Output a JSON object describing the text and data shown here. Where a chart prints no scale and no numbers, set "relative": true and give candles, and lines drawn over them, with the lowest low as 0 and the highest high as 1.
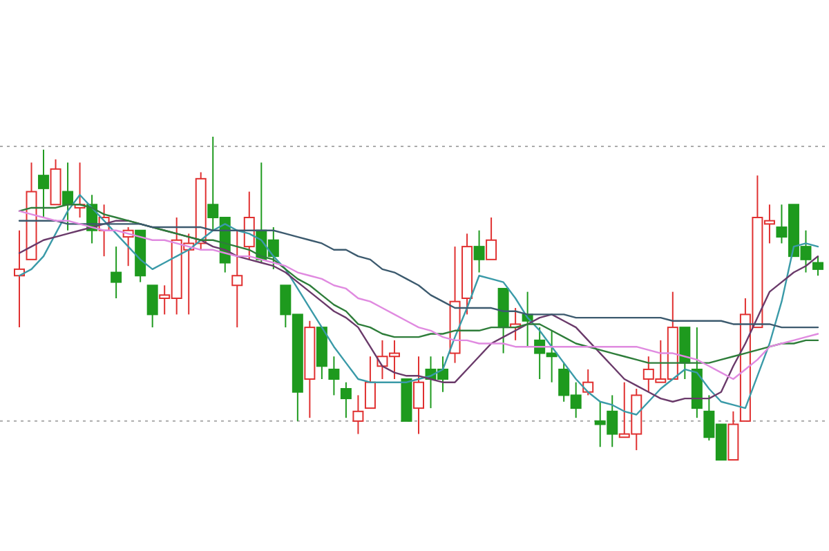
{
  "chart_data": {
    "type": "candlestick",
    "relative": true,
    "categories": [
      null,
      null,
      null,
      null,
      null,
      null,
      null,
      null,
      null,
      null,
      null,
      null,
      null,
      null,
      null,
      null,
      null,
      null,
      null,
      null,
      null,
      null,
      null,
      null,
      null,
      null,
      null,
      null,
      null,
      null,
      null,
      null,
      null,
      null,
      null,
      null,
      null,
      null,
      null,
      null,
      null,
      null,
      null,
      null,
      null,
      null,
      null,
      null,
      null,
      null,
      null,
      null,
      null,
      null,
      null,
      null,
      null,
      null,
      null,
      null,
      null,
      null,
      null,
      null,
      null,
      null,
      null
    ],
    "ohlc": [
      [
        0.57,
        0.71,
        0.41,
        0.59
      ],
      [
        0.62,
        0.92,
        0.62,
        0.83
      ],
      [
        0.88,
        0.96,
        0.75,
        0.84
      ],
      [
        0.79,
        0.93,
        0.79,
        0.9
      ],
      [
        0.83,
        0.92,
        0.71,
        0.79
      ],
      [
        0.78,
        0.92,
        0.75,
        0.79
      ],
      [
        0.79,
        0.82,
        0.67,
        0.71
      ],
      [
        0.71,
        0.79,
        0.63,
        0.75
      ],
      [
        0.58,
        0.66,
        0.5,
        0.55
      ],
      [
        0.69,
        0.72,
        0.6,
        0.71
      ],
      [
        0.71,
        0.71,
        0.55,
        0.57
      ],
      [
        0.54,
        0.54,
        0.41,
        0.45
      ],
      [
        0.5,
        0.54,
        0.45,
        0.51
      ],
      [
        0.5,
        0.75,
        0.45,
        0.68
      ],
      [
        0.65,
        0.7,
        0.45,
        0.67
      ],
      [
        0.67,
        0.89,
        0.65,
        0.87
      ],
      [
        0.79,
        1.0,
        0.71,
        0.75
      ],
      [
        0.75,
        0.75,
        0.58,
        0.61
      ],
      [
        0.54,
        0.71,
        0.41,
        0.57
      ],
      [
        0.66,
        0.83,
        0.62,
        0.75
      ],
      [
        0.71,
        0.92,
        0.61,
        0.62
      ],
      [
        0.68,
        0.72,
        0.59,
        0.63
      ],
      [
        0.54,
        0.54,
        0.41,
        0.45
      ],
      [
        0.45,
        0.45,
        0.12,
        0.21
      ],
      [
        0.25,
        0.43,
        0.13,
        0.41
      ],
      [
        0.41,
        0.41,
        0.25,
        0.29
      ],
      [
        0.28,
        0.32,
        0.2,
        0.25
      ],
      [
        0.22,
        0.24,
        0.13,
        0.19
      ],
      [
        0.12,
        0.2,
        0.08,
        0.15
      ],
      [
        0.16,
        0.32,
        0.16,
        0.24
      ],
      [
        0.29,
        0.37,
        0.25,
        0.32
      ],
      [
        0.32,
        0.37,
        0.25,
        0.33
      ],
      [
        0.25,
        0.25,
        0.12,
        0.12
      ],
      [
        0.16,
        0.32,
        0.08,
        0.24
      ],
      [
        0.28,
        0.32,
        0.16,
        0.25
      ],
      [
        0.28,
        0.32,
        0.21,
        0.25
      ],
      [
        0.33,
        0.66,
        0.3,
        0.49
      ],
      [
        0.5,
        0.7,
        0.45,
        0.66
      ],
      [
        0.66,
        0.71,
        0.58,
        0.62
      ],
      [
        0.62,
        0.75,
        0.62,
        0.68
      ],
      [
        0.53,
        0.53,
        0.33,
        0.41
      ],
      [
        0.41,
        0.47,
        0.37,
        0.42
      ],
      [
        0.45,
        0.52,
        0.35,
        0.43
      ],
      [
        0.37,
        0.41,
        0.25,
        0.33
      ],
      [
        0.33,
        0.4,
        0.24,
        0.32
      ],
      [
        0.28,
        0.3,
        0.18,
        0.2
      ],
      [
        0.2,
        0.24,
        0.13,
        0.16
      ],
      [
        0.21,
        0.28,
        0.2,
        0.24
      ],
      [
        0.12,
        0.18,
        0.04,
        0.11
      ],
      [
        0.15,
        0.2,
        0.04,
        0.08
      ],
      [
        0.07,
        0.24,
        0.07,
        0.08
      ],
      [
        0.08,
        0.22,
        0.03,
        0.2
      ],
      [
        0.25,
        0.32,
        0.21,
        0.28
      ],
      [
        0.24,
        0.37,
        0.24,
        0.25
      ],
      [
        0.25,
        0.52,
        0.25,
        0.41
      ],
      [
        0.41,
        0.41,
        0.25,
        0.3
      ],
      [
        0.28,
        0.41,
        0.13,
        0.16
      ],
      [
        0.15,
        0.2,
        0.06,
        0.07
      ],
      [
        0.11,
        0.11,
        0.0,
        0.0
      ],
      [
        0.0,
        0.15,
        0.0,
        0.11
      ],
      [
        0.12,
        0.5,
        0.12,
        0.45
      ],
      [
        0.41,
        0.88,
        0.41,
        0.75
      ],
      [
        0.73,
        0.79,
        0.67,
        0.74
      ],
      [
        0.72,
        0.79,
        0.67,
        0.69
      ],
      [
        0.79,
        0.79,
        0.63,
        0.63
      ],
      [
        0.66,
        0.71,
        0.58,
        0.62
      ],
      [
        0.61,
        0.63,
        0.57,
        0.59
      ]
    ],
    "colors": [
      "#e03030",
      "#e03030",
      "#1e9a1e",
      "#e03030",
      "#1e9a1e",
      "#e03030",
      "#1e9a1e",
      "#e03030",
      "#1e9a1e",
      "#e03030",
      "#1e9a1e",
      "#1e9a1e",
      "#e03030",
      "#e03030",
      "#e03030",
      "#e03030",
      "#1e9a1e",
      "#1e9a1e",
      "#e03030",
      "#e03030",
      "#1e9a1e",
      "#1e9a1e",
      "#1e9a1e",
      "#1e9a1e",
      "#e03030",
      "#1e9a1e",
      "#1e9a1e",
      "#1e9a1e",
      "#e03030",
      "#e03030",
      "#e03030",
      "#e03030",
      "#1e9a1e",
      "#e03030",
      "#1e9a1e",
      "#1e9a1e",
      "#e03030",
      "#e03030",
      "#1e9a1e",
      "#e03030",
      "#1e9a1e",
      "#e03030",
      "#1e9a1e",
      "#1e9a1e",
      "#1e9a1e",
      "#1e9a1e",
      "#1e9a1e",
      "#e03030",
      "#1e9a1e",
      "#1e9a1e",
      "#e03030",
      "#e03030",
      "#e03030",
      "#e03030",
      "#e03030",
      "#1e9a1e",
      "#1e9a1e",
      "#1e9a1e",
      "#1e9a1e",
      "#e03030",
      "#e03030",
      "#e03030",
      "#e03030",
      "#1e9a1e",
      "#1e9a1e",
      "#1e9a1e",
      "#1e9a1e"
    ],
    "series": [
      {
        "type": "line",
        "color": "#3a9aa8",
        "values": [
          0.57,
          0.59,
          0.63,
          0.7,
          0.77,
          0.82,
          0.78,
          0.74,
          0.7,
          0.66,
          0.62,
          0.59,
          0.61,
          0.63,
          0.65,
          0.68,
          0.71,
          0.73,
          0.71,
          0.7,
          0.68,
          0.63,
          0.59,
          0.53,
          0.47,
          0.41,
          0.35,
          0.3,
          0.25,
          0.24,
          0.24,
          0.24,
          0.24,
          0.25,
          0.26,
          0.28,
          0.38,
          0.47,
          0.57,
          0.56,
          0.55,
          0.5,
          0.44,
          0.4,
          0.35,
          0.3,
          0.25,
          0.21,
          0.18,
          0.17,
          0.15,
          0.14,
          0.18,
          0.22,
          0.25,
          0.28,
          0.27,
          0.22,
          0.18,
          0.17,
          0.16,
          0.26,
          0.36,
          0.49,
          0.66,
          0.67,
          0.66
        ]
      },
      {
        "type": "line",
        "color": "#6a3a6a",
        "values": [
          0.64,
          0.66,
          0.68,
          0.69,
          0.7,
          0.71,
          0.72,
          0.73,
          0.74,
          0.74,
          0.73,
          0.72,
          0.71,
          0.7,
          0.69,
          0.68,
          0.66,
          0.65,
          0.63,
          0.62,
          0.61,
          0.6,
          0.58,
          0.55,
          0.52,
          0.49,
          0.46,
          0.44,
          0.41,
          0.35,
          0.29,
          0.27,
          0.26,
          0.26,
          0.25,
          0.24,
          0.24,
          0.28,
          0.32,
          0.36,
          0.38,
          0.4,
          0.42,
          0.44,
          0.45,
          0.43,
          0.41,
          0.37,
          0.33,
          0.29,
          0.25,
          0.23,
          0.21,
          0.19,
          0.18,
          0.19,
          0.19,
          0.19,
          0.21,
          0.29,
          0.36,
          0.44,
          0.52,
          0.55,
          0.58,
          0.6,
          0.63
        ]
      },
      {
        "type": "line",
        "color": "#2e7d3a",
        "values": [
          0.77,
          0.78,
          0.78,
          0.78,
          0.79,
          0.79,
          0.78,
          0.76,
          0.75,
          0.74,
          0.73,
          0.72,
          0.71,
          0.7,
          0.69,
          0.68,
          0.68,
          0.67,
          0.66,
          0.65,
          0.63,
          0.62,
          0.59,
          0.56,
          0.54,
          0.51,
          0.48,
          0.46,
          0.42,
          0.41,
          0.39,
          0.38,
          0.38,
          0.38,
          0.39,
          0.39,
          0.4,
          0.4,
          0.4,
          0.41,
          0.41,
          0.41,
          0.42,
          0.42,
          0.4,
          0.38,
          0.36,
          0.35,
          0.34,
          0.33,
          0.32,
          0.31,
          0.3,
          0.3,
          0.3,
          0.3,
          0.3,
          0.3,
          0.31,
          0.32,
          0.33,
          0.34,
          0.35,
          0.36,
          0.36,
          0.37,
          0.37
        ]
      },
      {
        "type": "line",
        "color": "#3c5a6e",
        "values": [
          0.74,
          0.74,
          0.74,
          0.74,
          0.73,
          0.73,
          0.73,
          0.73,
          0.73,
          0.73,
          0.73,
          0.72,
          0.72,
          0.72,
          0.72,
          0.72,
          0.71,
          0.71,
          0.71,
          0.71,
          0.71,
          0.71,
          0.7,
          0.69,
          0.68,
          0.67,
          0.65,
          0.65,
          0.63,
          0.62,
          0.59,
          0.58,
          0.56,
          0.54,
          0.51,
          0.49,
          0.47,
          0.47,
          0.47,
          0.47,
          0.46,
          0.46,
          0.45,
          0.45,
          0.45,
          0.45,
          0.44,
          0.44,
          0.44,
          0.44,
          0.44,
          0.44,
          0.44,
          0.44,
          0.43,
          0.43,
          0.43,
          0.43,
          0.43,
          0.42,
          0.42,
          0.42,
          0.42,
          0.41,
          0.41,
          0.41,
          0.41
        ]
      },
      {
        "type": "line",
        "color": "#e08ae0",
        "values": [
          0.77,
          0.76,
          0.75,
          0.74,
          0.74,
          0.73,
          0.72,
          0.71,
          0.71,
          0.7,
          0.69,
          0.68,
          0.68,
          0.67,
          0.66,
          0.65,
          0.65,
          0.64,
          0.63,
          0.63,
          0.62,
          0.61,
          0.6,
          0.58,
          0.57,
          0.56,
          0.54,
          0.53,
          0.5,
          0.49,
          0.47,
          0.45,
          0.43,
          0.41,
          0.4,
          0.38,
          0.37,
          0.37,
          0.36,
          0.36,
          0.36,
          0.35,
          0.35,
          0.35,
          0.35,
          0.35,
          0.35,
          0.35,
          0.35,
          0.35,
          0.35,
          0.35,
          0.34,
          0.33,
          0.33,
          0.32,
          0.31,
          0.29,
          0.27,
          0.25,
          0.28,
          0.31,
          0.35,
          0.36,
          0.37,
          0.38,
          0.39
        ]
      }
    ],
    "ref_lines": [
      {
        "axis": "y",
        "value": 0.97,
        "color": "#aaaaaa",
        "line_style": "dotted"
      },
      {
        "axis": "y",
        "value": 0.12,
        "color": "#aaaaaa",
        "line_style": "dotted"
      }
    ]
  }
}
